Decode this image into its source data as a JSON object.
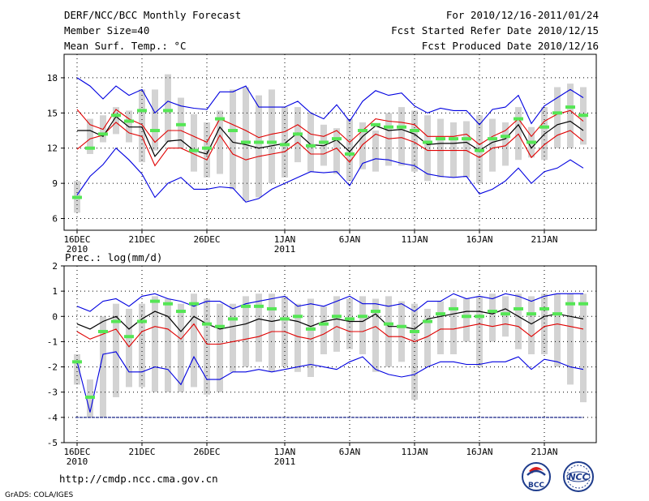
{
  "header": {
    "title": "DERF/NCC/BCC Monthly Forecast",
    "member_size": "Member Size=40",
    "variable": "Mean Surf. Temp.: °C",
    "period": "For 2010/12/16-2011/01/24",
    "fcst_started": "Fcst Started Refer Date 2010/12/15",
    "fcst_produced": "Fcst Produced Date 2010/12/16"
  },
  "footer": {
    "url": "http://cmdp.ncc.cma.gov.cn",
    "grads": "GrADS: COLA/IGES",
    "logo_left": "BCC",
    "logo_right": "NCC"
  },
  "colors": {
    "box": "#d3d3d3",
    "ensemble_mean": "#000000",
    "inner_band": "#e00000",
    "outer_band": "#0000e0",
    "member_marker": "#55e655",
    "grid": "#000000"
  },
  "chart_data": [
    {
      "type": "line",
      "id": "temp",
      "title": "Mean Surf. Temp.: °C",
      "x": [
        1,
        2,
        3,
        4,
        5,
        6,
        7,
        8,
        9,
        10,
        11,
        12,
        13,
        14,
        15,
        16,
        17,
        18,
        19,
        20,
        21,
        22,
        23,
        24,
        25,
        26,
        27,
        28,
        29,
        30,
        31,
        32,
        33,
        34,
        35,
        36,
        37,
        38,
        39,
        40
      ],
      "xlim": [
        0,
        41
      ],
      "ylim": [
        5,
        20
      ],
      "yticks": [
        6,
        9,
        12,
        15,
        18
      ],
      "xticks": [
        {
          "x": 1,
          "label": "16DEC",
          "sub": "2010"
        },
        {
          "x": 6,
          "label": "21DEC"
        },
        {
          "x": 11,
          "label": "26DEC"
        },
        {
          "x": 17,
          "label": "1JAN",
          "sub": "2011"
        },
        {
          "x": 22,
          "label": "6JAN"
        },
        {
          "x": 27,
          "label": "11JAN"
        },
        {
          "x": 32,
          "label": "16JAN"
        },
        {
          "x": 37,
          "label": "21JAN"
        }
      ],
      "grid": true,
      "series": [
        {
          "name": "box_high",
          "values": [
            9.2,
            14.5,
            14.8,
            15.5,
            15.2,
            17.0,
            17.0,
            18.3,
            16.3,
            14.9,
            14.2,
            15.2,
            17.0,
            17.2,
            16.5,
            17.0,
            15.5,
            15.5,
            15.0,
            14.0,
            13.7,
            14.5,
            14.2,
            13.5,
            15.0,
            15.5,
            15.2,
            14.8,
            14.5,
            14.2,
            14.3,
            14.8,
            14.5,
            14.2,
            15.5,
            13.8,
            15.5,
            17.2,
            17.5,
            17.2
          ]
        },
        {
          "name": "box_low",
          "values": [
            6.5,
            11.5,
            12.5,
            13.2,
            12.5,
            10.8,
            11.8,
            12.5,
            12.0,
            10.0,
            9.5,
            9.8,
            8.5,
            7.5,
            7.8,
            9.0,
            9.5,
            10.8,
            10.0,
            10.5,
            9.8,
            9.2,
            10.2,
            10.0,
            10.5,
            10.5,
            10.0,
            9.2,
            9.5,
            9.5,
            9.5,
            9.0,
            10.0,
            10.5,
            11.0,
            11.2,
            11.0,
            12.0,
            12.0,
            12.3
          ]
        },
        {
          "name": "outer_max",
          "values": [
            18.0,
            17.3,
            16.2,
            17.3,
            16.5,
            17.0,
            15.0,
            16.0,
            15.6,
            15.4,
            15.3,
            16.8,
            16.8,
            17.3,
            15.5,
            15.5,
            15.5,
            16.0,
            15.0,
            14.5,
            15.7,
            14.3,
            16.0,
            16.9,
            16.5,
            16.7,
            15.6,
            15.0,
            15.4,
            15.2,
            15.2,
            14.0,
            15.3,
            15.5,
            16.5,
            14.1,
            15.6,
            16.3,
            17.0,
            16.3
          ]
        },
        {
          "name": "inner_max",
          "values": [
            15.3,
            14.0,
            13.6,
            15.3,
            14.5,
            14.0,
            12.5,
            13.5,
            13.5,
            13.0,
            12.5,
            14.5,
            14.0,
            13.5,
            12.9,
            13.2,
            13.4,
            14.0,
            13.2,
            13.0,
            13.5,
            12.5,
            13.5,
            14.5,
            14.3,
            14.2,
            14.0,
            13.0,
            13.0,
            13.0,
            13.2,
            12.3,
            13.0,
            13.5,
            14.5,
            13.0,
            14.3,
            14.9,
            15.2,
            14.3
          ]
        },
        {
          "name": "ens_mean",
          "values": [
            13.5,
            13.5,
            13.0,
            14.7,
            13.8,
            13.8,
            11.3,
            12.6,
            12.7,
            11.8,
            11.5,
            13.8,
            12.5,
            12.3,
            12.0,
            12.2,
            12.4,
            13.3,
            12.3,
            12.2,
            12.7,
            11.7,
            13.0,
            13.9,
            13.5,
            13.6,
            13.2,
            12.3,
            12.4,
            12.4,
            12.5,
            11.8,
            12.5,
            12.8,
            14.0,
            12.0,
            13.2,
            14.0,
            14.3,
            13.5
          ]
        },
        {
          "name": "inner_min",
          "values": [
            11.9,
            12.8,
            13.1,
            14.2,
            13.3,
            13.0,
            10.5,
            12.0,
            12.0,
            11.5,
            11.0,
            13.1,
            11.5,
            11.0,
            11.3,
            11.5,
            11.7,
            12.5,
            11.5,
            11.5,
            12.0,
            10.8,
            12.3,
            13.2,
            12.8,
            12.9,
            12.5,
            11.8,
            11.8,
            11.8,
            11.8,
            11.2,
            12.0,
            12.2,
            13.2,
            11.2,
            12.3,
            13.1,
            13.5,
            12.6
          ]
        },
        {
          "name": "outer_min",
          "values": [
            8.0,
            9.6,
            10.6,
            12.0,
            11.0,
            9.8,
            7.8,
            9.0,
            9.5,
            8.5,
            8.5,
            8.7,
            8.6,
            7.4,
            7.7,
            8.5,
            9.0,
            9.5,
            10.0,
            9.9,
            10.0,
            8.8,
            10.7,
            11.1,
            11.0,
            10.7,
            10.5,
            9.8,
            9.6,
            9.5,
            9.6,
            8.1,
            8.5,
            9.2,
            10.3,
            9.0,
            10.0,
            10.3,
            11.0,
            10.3
          ]
        },
        {
          "name": "member_marker",
          "values": [
            7.8,
            12.0,
            13.2,
            14.8,
            14.3,
            15.2,
            13.5,
            15.2,
            14.0,
            11.8,
            12.0,
            14.5,
            13.5,
            12.5,
            12.5,
            12.5,
            12.3,
            13.2,
            12.2,
            12.5,
            12.8,
            11.5,
            13.5,
            14.0,
            13.8,
            13.8,
            13.5,
            12.5,
            12.8,
            12.8,
            12.8,
            11.8,
            12.8,
            13.0,
            14.5,
            12.5,
            13.8,
            15.0,
            15.5,
            14.8
          ]
        }
      ]
    },
    {
      "type": "line",
      "id": "prec",
      "title": "Prec.: log(mm/d)",
      "x": [
        1,
        2,
        3,
        4,
        5,
        6,
        7,
        8,
        9,
        10,
        11,
        12,
        13,
        14,
        15,
        16,
        17,
        18,
        19,
        20,
        21,
        22,
        23,
        24,
        25,
        26,
        27,
        28,
        29,
        30,
        31,
        32,
        33,
        34,
        35,
        36,
        37,
        38,
        39,
        40
      ],
      "xlim": [
        0,
        41
      ],
      "ylim": [
        -5,
        2
      ],
      "yticks": [
        -5,
        -4,
        -3,
        -2,
        -1,
        0,
        1,
        2
      ],
      "xticks": [
        {
          "x": 1,
          "label": "16DEC",
          "sub": "2010"
        },
        {
          "x": 6,
          "label": "21DEC"
        },
        {
          "x": 11,
          "label": "26DEC"
        },
        {
          "x": 17,
          "label": "1JAN",
          "sub": "2011"
        },
        {
          "x": 22,
          "label": "6JAN"
        },
        {
          "x": 27,
          "label": "11JAN"
        },
        {
          "x": 32,
          "label": "16JAN"
        },
        {
          "x": 37,
          "label": "21JAN"
        }
      ],
      "baseline": -4,
      "grid": true,
      "series": [
        {
          "name": "box_high",
          "values": [
            -1.5,
            -2.5,
            0.0,
            0.5,
            0.3,
            0.5,
            0.8,
            0.7,
            0.5,
            0.9,
            0.7,
            0.5,
            0.5,
            0.8,
            0.9,
            0.9,
            0.8,
            0.5,
            0.7,
            0.4,
            0.8,
            0.7,
            0.8,
            0.7,
            0.8,
            0.6,
            0.5,
            0.3,
            0.6,
            0.7,
            0.7,
            0.8,
            0.9,
            0.8,
            0.9,
            0.8,
            0.9,
            0.9,
            0.9,
            0.9
          ]
        },
        {
          "name": "box_low",
          "values": [
            -2.7,
            -4.0,
            -4.0,
            -3.2,
            -2.8,
            -2.8,
            -3.0,
            -3.0,
            -3.0,
            -2.8,
            -3.1,
            -3.0,
            -2.2,
            -2.0,
            -1.8,
            -2.2,
            -2.0,
            -2.2,
            -2.4,
            -1.5,
            -1.4,
            -1.3,
            -1.5,
            -2.2,
            -2.0,
            -1.8,
            -3.3,
            -2.0,
            -1.5,
            -1.5,
            -1.0,
            -2.0,
            -1.0,
            -0.8,
            -1.3,
            -1.5,
            -1.5,
            -2.0,
            -2.7,
            -3.4
          ]
        },
        {
          "name": "outer_max",
          "values": [
            0.4,
            0.2,
            0.6,
            0.7,
            0.4,
            0.8,
            0.9,
            0.7,
            0.6,
            0.4,
            0.6,
            0.6,
            0.3,
            0.5,
            0.6,
            0.7,
            0.8,
            0.4,
            0.5,
            0.4,
            0.6,
            0.8,
            0.5,
            0.5,
            0.4,
            0.5,
            0.2,
            0.6,
            0.6,
            0.9,
            0.7,
            0.8,
            0.7,
            0.9,
            0.8,
            0.6,
            0.8,
            0.9,
            0.9,
            0.9
          ]
        },
        {
          "name": "ens_mean",
          "values": [
            -0.3,
            -0.5,
            -0.2,
            0.0,
            -0.5,
            -0.1,
            0.2,
            0.0,
            -0.6,
            0.0,
            -0.3,
            -0.5,
            -0.4,
            -0.3,
            -0.1,
            -0.2,
            -0.1,
            -0.2,
            -0.4,
            -0.2,
            -0.1,
            -0.2,
            -0.2,
            0.1,
            -0.4,
            -0.4,
            -0.5,
            -0.1,
            0.0,
            0.1,
            0.2,
            0.2,
            0.1,
            0.3,
            0.0,
            -0.3,
            0.0,
            0.1,
            0.0,
            -0.1
          ]
        },
        {
          "name": "inner_min",
          "values": [
            -0.6,
            -0.9,
            -0.7,
            -0.5,
            -1.2,
            -0.6,
            -0.4,
            -0.5,
            -0.9,
            -0.3,
            -1.1,
            -1.1,
            -1.0,
            -0.9,
            -0.8,
            -0.6,
            -0.6,
            -0.8,
            -0.9,
            -0.7,
            -0.4,
            -0.6,
            -0.6,
            -0.4,
            -0.8,
            -0.8,
            -1.0,
            -0.8,
            -0.5,
            -0.5,
            -0.4,
            -0.3,
            -0.4,
            -0.3,
            -0.4,
            -0.8,
            -0.4,
            -0.3,
            -0.4,
            -0.5
          ]
        },
        {
          "name": "outer_min",
          "values": [
            -1.8,
            -3.8,
            -1.5,
            -1.4,
            -2.2,
            -2.2,
            -2.0,
            -2.1,
            -2.7,
            -1.6,
            -2.5,
            -2.5,
            -2.2,
            -2.2,
            -2.1,
            -2.2,
            -2.1,
            -2.0,
            -1.9,
            -2.0,
            -2.1,
            -1.8,
            -1.6,
            -2.1,
            -2.3,
            -2.4,
            -2.3,
            -2.0,
            -1.8,
            -1.8,
            -1.9,
            -1.9,
            -1.8,
            -1.8,
            -1.6,
            -2.1,
            -1.7,
            -1.8,
            -2.0,
            -2.1
          ]
        },
        {
          "name": "member_marker",
          "values": [
            -1.8,
            -3.2,
            -0.6,
            -0.2,
            -0.8,
            -0.2,
            0.6,
            0.5,
            0.2,
            0.5,
            -0.3,
            -0.4,
            -0.1,
            0.4,
            0.4,
            0.3,
            -0.1,
            0.0,
            -0.5,
            -0.3,
            0.0,
            -0.1,
            0.0,
            0.2,
            -0.3,
            -0.4,
            -0.6,
            -0.2,
            0.1,
            0.3,
            0.0,
            0.0,
            0.2,
            0.1,
            0.3,
            0.1,
            0.3,
            0.1,
            0.5,
            0.5
          ]
        }
      ]
    }
  ]
}
